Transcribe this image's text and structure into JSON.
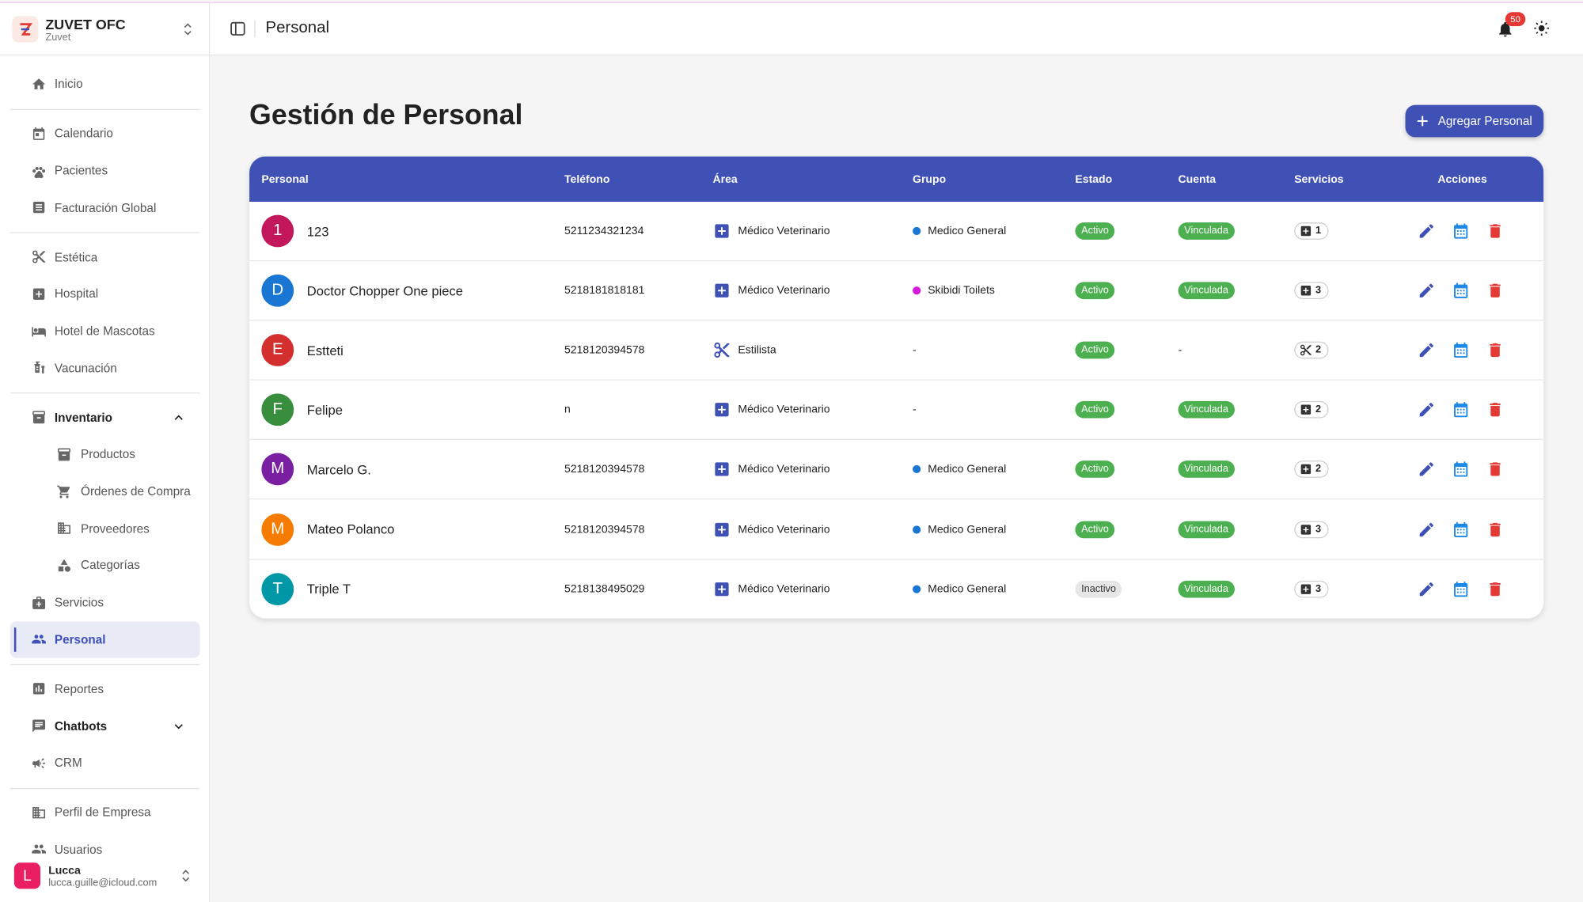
{
  "sidebar": {
    "brand": {
      "title": "ZUVET OFC",
      "subtitle": "Zuvet"
    },
    "nav": [
      [
        {
          "label": "Inicio",
          "icon": "home"
        }
      ],
      [
        {
          "label": "Calendario",
          "icon": "calendar"
        },
        {
          "label": "Pacientes",
          "icon": "paw"
        },
        {
          "label": "Facturación Global",
          "icon": "doc"
        }
      ],
      [
        {
          "label": "Estética",
          "icon": "scissors"
        },
        {
          "label": "Hospital",
          "icon": "plus"
        },
        {
          "label": "Hotel de Mascotas",
          "icon": "bed"
        },
        {
          "label": "Vacunación",
          "icon": "vaccine"
        }
      ],
      [
        {
          "label": "Inventario",
          "icon": "box",
          "expanded": true,
          "children": [
            {
              "label": "Productos",
              "icon": "box"
            },
            {
              "label": "Órdenes de Compra",
              "icon": "cart"
            },
            {
              "label": "Proveedores",
              "icon": "building"
            },
            {
              "label": "Categorías",
              "icon": "shapes"
            }
          ]
        },
        {
          "label": "Servicios",
          "icon": "medkit"
        },
        {
          "label": "Personal",
          "icon": "people",
          "selected": true
        }
      ],
      [
        {
          "label": "Reportes",
          "icon": "chart"
        },
        {
          "label": "Chatbots",
          "icon": "chat",
          "expanded": false
        },
        {
          "label": "CRM",
          "icon": "megaphone"
        }
      ],
      [
        {
          "label": "Perfil de Empresa",
          "icon": "building"
        },
        {
          "label": "Usuarios",
          "icon": "people"
        }
      ]
    ],
    "user": {
      "initial": "L",
      "name": "Lucca",
      "email": "lucca.guille@icloud.com"
    }
  },
  "header": {
    "title": "Personal",
    "notifications": 50
  },
  "page": {
    "title": "Gestión de Personal",
    "button": "Agregar Personal"
  },
  "table": {
    "columns": [
      "Personal",
      "Teléfono",
      "Área",
      "Grupo",
      "Estado",
      "Cuenta",
      "Servicios",
      "Acciones"
    ],
    "rows": [
      {
        "initial": "1",
        "avatar_color": "#c2185b",
        "name": "123",
        "phone": "5211234321234",
        "area": "Médico Veterinario",
        "area_icon": "plus",
        "group": "Medico General",
        "group_color": "#1976d2",
        "status": "Activo",
        "status_active": true,
        "account": "Vinculada",
        "account_linked": true,
        "services": 1
      },
      {
        "initial": "D",
        "avatar_color": "#1976d2",
        "name": "Doctor Chopper One piece",
        "phone": "5218181818181",
        "area": "Médico Veterinario",
        "area_icon": "plus",
        "group": "Skibidi Toilets",
        "group_color": "#d81bd8",
        "status": "Activo",
        "status_active": true,
        "account": "Vinculada",
        "account_linked": true,
        "services": 3
      },
      {
        "initial": "E",
        "avatar_color": "#d32f2f",
        "name": "Estteti",
        "phone": "5218120394578",
        "area": "Estilista",
        "area_icon": "scissors",
        "group": "-",
        "status": "Activo",
        "status_active": true,
        "account": "-",
        "account_linked": false,
        "services": 2
      },
      {
        "initial": "F",
        "avatar_color": "#388e3c",
        "name": "Felipe",
        "phone": "n",
        "area": "Médico Veterinario",
        "area_icon": "plus",
        "group": "-",
        "status": "Activo",
        "status_active": true,
        "account": "Vinculada",
        "account_linked": true,
        "services": 2
      },
      {
        "initial": "M",
        "avatar_color": "#7b1fa2",
        "name": "Marcelo G.",
        "phone": "5218120394578",
        "area": "Médico Veterinario",
        "area_icon": "plus",
        "group": "Medico General",
        "group_color": "#1976d2",
        "status": "Activo",
        "status_active": true,
        "account": "Vinculada",
        "account_linked": true,
        "services": 2
      },
      {
        "initial": "M",
        "avatar_color": "#f57c00",
        "name": "Mateo Polanco",
        "phone": "5218120394578",
        "area": "Médico Veterinario",
        "area_icon": "plus",
        "group": "Medico General",
        "group_color": "#1976d2",
        "status": "Activo",
        "status_active": true,
        "account": "Vinculada",
        "account_linked": true,
        "services": 3
      },
      {
        "initial": "T",
        "avatar_color": "#0097a7",
        "name": "Triple T",
        "phone": "5218138495029",
        "area": "Médico Veterinario",
        "area_icon": "plus",
        "group": "Medico General",
        "group_color": "#1976d2",
        "status": "Inactivo",
        "status_active": false,
        "account": "Vinculada",
        "account_linked": true,
        "services": 3
      }
    ]
  }
}
